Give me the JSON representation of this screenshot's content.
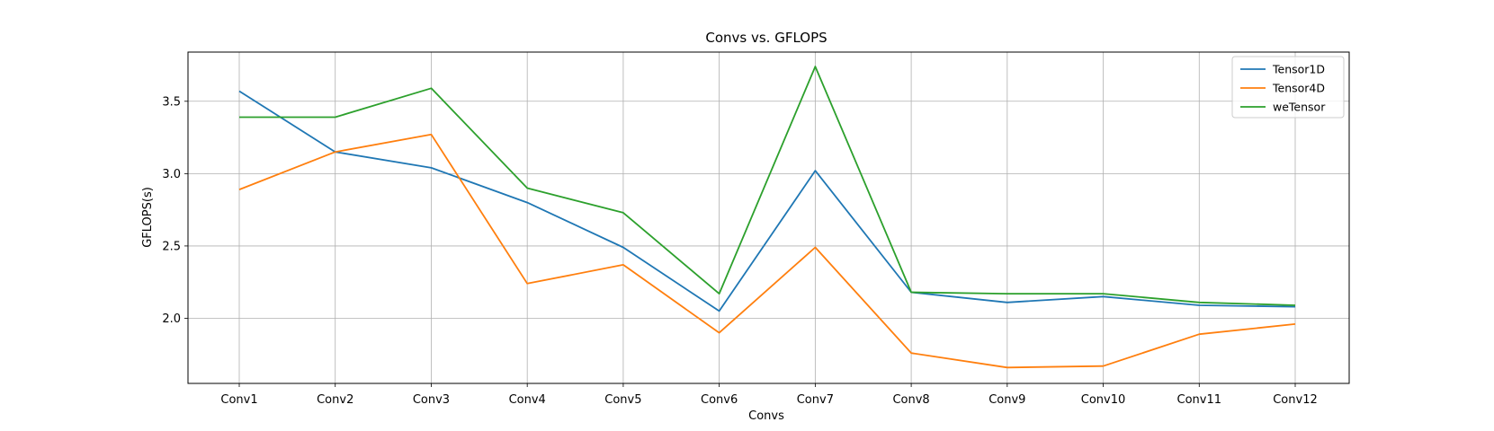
{
  "chart_data": {
    "type": "line",
    "title": "Convs vs. GFLOPS",
    "xlabel": "Convs",
    "ylabel": "GFLOPS(s)",
    "categories": [
      "Conv1",
      "Conv2",
      "Conv3",
      "Conv4",
      "Conv5",
      "Conv6",
      "Conv7",
      "Conv8",
      "Conv9",
      "Conv10",
      "Conv11",
      "Conv12"
    ],
    "ylim": [
      1.55,
      3.84
    ],
    "yticks": [
      "2.0",
      "2.5",
      "3.0",
      "3.5"
    ],
    "grid": true,
    "legend_position": "top-right",
    "series": [
      {
        "name": "Tensor1D",
        "color": "#1f77b4",
        "values": [
          3.57,
          3.15,
          3.04,
          2.8,
          2.49,
          2.05,
          3.02,
          2.18,
          2.11,
          2.15,
          2.09,
          2.08
        ]
      },
      {
        "name": "Tensor4D",
        "color": "#ff7f0e",
        "values": [
          2.89,
          3.15,
          3.27,
          2.24,
          2.37,
          1.9,
          2.49,
          1.76,
          1.66,
          1.67,
          1.89,
          1.96
        ]
      },
      {
        "name": "weTensor",
        "color": "#2ca02c",
        "values": [
          3.39,
          3.39,
          3.59,
          2.9,
          2.73,
          2.17,
          3.74,
          2.18,
          2.17,
          2.17,
          2.11,
          2.09
        ]
      }
    ]
  }
}
